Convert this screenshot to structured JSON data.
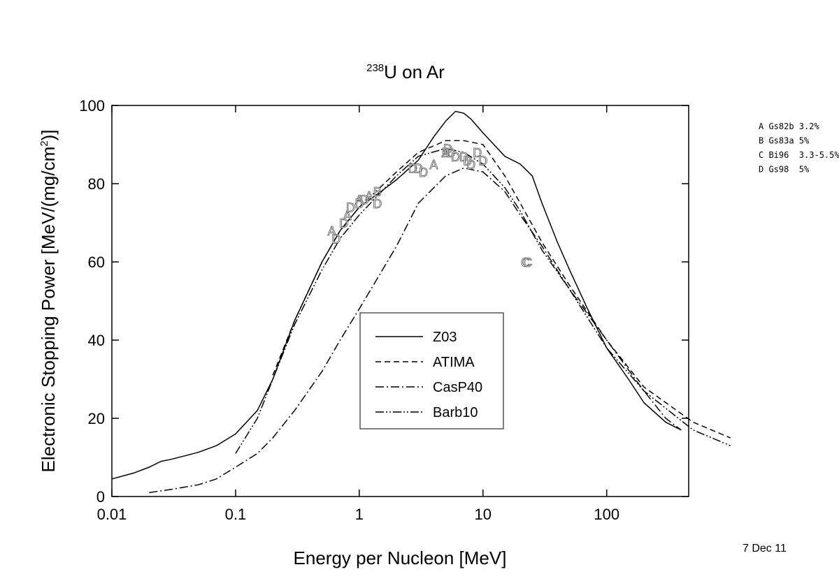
{
  "chart_data": {
    "type": "line",
    "title": {
      "sup": "238",
      "text": "U on Ar"
    },
    "xlabel": "Energy per Nucleon [MeV]",
    "ylabel": {
      "before": "Electronic Stopping Power [MeV/(mg/cm",
      "sup": "2",
      "after": ")]"
    },
    "xscale": "log",
    "xlim": [
      0.01,
      460
    ],
    "ylim": [
      0,
      100
    ],
    "xticks": [
      0.01,
      0.1,
      1,
      10,
      100
    ],
    "yticks": [
      0,
      20,
      40,
      60,
      80,
      100
    ],
    "color": "#000000",
    "series": [
      {
        "name": "Z03",
        "dash": "none",
        "x": [
          0.01,
          0.015,
          0.02,
          0.025,
          0.03,
          0.04,
          0.05,
          0.07,
          0.1,
          0.15,
          0.2,
          0.3,
          0.5,
          0.7,
          1,
          1.5,
          2,
          3,
          4,
          5,
          6,
          7,
          8,
          10,
          15,
          20,
          25,
          30,
          40,
          50,
          70,
          100,
          150,
          200,
          300,
          400
        ],
        "values": [
          4.5,
          6,
          7.5,
          9,
          9.5,
          10.5,
          11.3,
          13,
          16,
          22,
          30,
          45,
          60,
          68,
          74,
          78,
          81,
          86,
          92,
          96,
          98.5,
          98,
          96.5,
          93,
          87,
          85,
          82,
          75,
          65,
          58,
          48,
          38,
          30,
          24,
          19,
          17
        ]
      },
      {
        "name": "ATIMA",
        "dash": "8,5",
        "x": [
          0.2,
          0.3,
          0.5,
          0.7,
          1,
          2,
          3,
          5,
          7,
          10,
          15,
          20,
          30,
          50,
          100,
          200,
          500,
          1000
        ],
        "values": [
          31,
          45,
          60,
          68,
          74,
          83,
          88,
          91,
          91,
          90,
          82,
          75,
          65,
          54,
          40,
          28,
          19,
          15
        ]
      },
      {
        "name": "CasP40",
        "dash": "12,4,2,4",
        "x": [
          0.02,
          0.03,
          0.05,
          0.07,
          0.1,
          0.15,
          0.2,
          0.3,
          0.5,
          0.7,
          1,
          2,
          3,
          5,
          7,
          10,
          15,
          20,
          30,
          50,
          100,
          200,
          300,
          400
        ],
        "values": [
          1,
          1.8,
          3,
          4.5,
          7.5,
          11,
          15,
          22,
          32,
          40,
          48,
          64,
          75,
          82,
          84,
          83,
          78,
          72,
          64,
          53,
          40,
          27,
          20,
          17
        ]
      },
      {
        "name": "Barb10",
        "dash": "12,3,2,3,2,3",
        "x": [
          0.1,
          0.15,
          0.2,
          0.3,
          0.5,
          0.7,
          1,
          2,
          3,
          5,
          7,
          10,
          15,
          20,
          30,
          50,
          100,
          200,
          500,
          1000
        ],
        "values": [
          11,
          20,
          30,
          44,
          58,
          66,
          72,
          82,
          87,
          89,
          88,
          85,
          79,
          73,
          63,
          53,
          38,
          27,
          17,
          13
        ]
      }
    ],
    "points": {
      "labels": [
        "A",
        "A",
        "A",
        "A",
        "A",
        "A",
        "B",
        "B",
        "C",
        "C",
        "D",
        "D",
        "D",
        "D",
        "D",
        "D",
        "D",
        "D",
        "D",
        "D",
        "D",
        "D",
        "D",
        "D",
        "D",
        "D",
        "D"
      ],
      "x": [
        0.6,
        0.8,
        1,
        1.2,
        4,
        5,
        1.4,
        5,
        22,
        23,
        0.65,
        0.75,
        0.85,
        1,
        1.1,
        1.4,
        2.7,
        3,
        3.3,
        5.2,
        5.5,
        6,
        7,
        7.5,
        8,
        9,
        10
      ],
      "values": [
        68,
        72,
        76,
        77,
        85,
        88,
        78,
        88,
        60,
        60,
        66,
        70,
        74,
        75,
        76,
        75,
        84,
        84,
        83,
        89,
        88,
        87,
        87,
        86,
        85,
        88,
        86
      ]
    },
    "notes": [
      "A Gs82b 3.2%",
      "B Gs83a 5%",
      "C Bi96  3.3-5.5%",
      "D Gs98  5%"
    ],
    "date": "7 Dec 11"
  }
}
